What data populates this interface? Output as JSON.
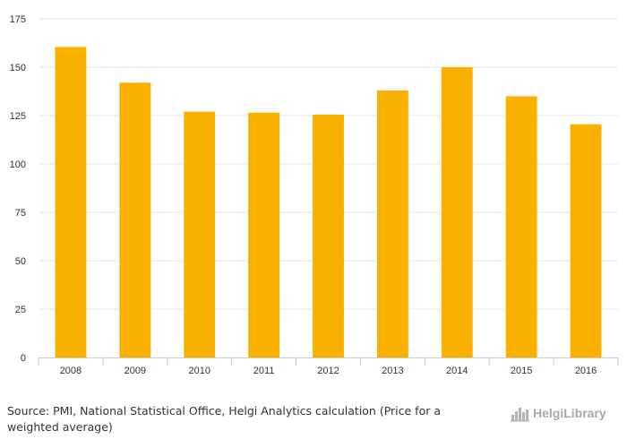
{
  "chart_data": {
    "type": "bar",
    "categories": [
      "2008",
      "2009",
      "2010",
      "2011",
      "2012",
      "2013",
      "2014",
      "2015",
      "2016"
    ],
    "values": [
      160.5,
      142,
      127,
      126.5,
      125.5,
      138,
      150,
      135,
      120.5
    ],
    "ylim": [
      0,
      175
    ],
    "yticks": [
      0,
      25,
      50,
      75,
      100,
      125,
      150,
      175
    ],
    "title": "",
    "xlabel": "",
    "ylabel": "",
    "grid": true,
    "bar_color": "#f9b000"
  },
  "footer": {
    "source": "Source: PMI, National Statistical Office, Helgi Analytics calculation (Price for a weighted average)",
    "brand": "HelgiLibrary"
  },
  "icons": {
    "brand_logo": "helgilibrary-logo-icon"
  }
}
